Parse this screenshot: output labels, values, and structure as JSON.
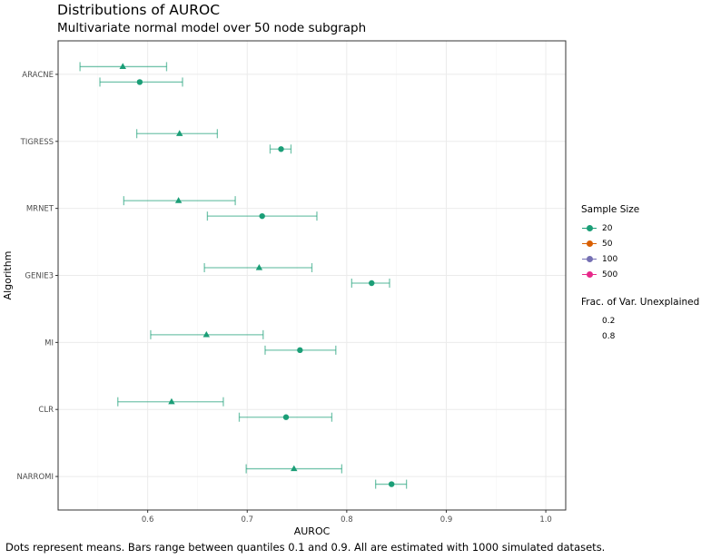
{
  "title": "Distributions of AUROC",
  "subtitle": "Multivariate normal model over 50 node subgraph",
  "caption": "Dots represent means. Bars range between quantiles 0.1 and 0.9. All are estimated with 1000 simulated datasets.",
  "legend": {
    "sample_size_title": "Sample Size",
    "sample_sizes": [
      {
        "label": "20",
        "color": "#1b9e77"
      },
      {
        "label": "50",
        "color": "#d95f02"
      },
      {
        "label": "100",
        "color": "#7570b3"
      },
      {
        "label": "500",
        "color": "#e7298a"
      }
    ],
    "frac_title": "Frac. of Var. Unexplained",
    "fracs": [
      {
        "label": "0.2",
        "shape": "circle"
      },
      {
        "label": "0.8",
        "shape": "triangle"
      }
    ]
  },
  "chart_data": {
    "type": "scatter",
    "title": "Distributions of AUROC",
    "subtitle": "Multivariate normal model over 50 node subgraph",
    "xlabel": "AUROC",
    "ylabel": "Algorithm",
    "xlim": [
      0.51,
      1.02
    ],
    "xticks": [
      0.6,
      0.7,
      0.8,
      0.9,
      1.0
    ],
    "xtick_labels": [
      "0.6",
      "0.7",
      "0.8",
      "0.9",
      "1.0"
    ],
    "categories": [
      "ARACNE",
      "TIGRESS",
      "MRNET",
      "GENIE3",
      "MI",
      "CLR",
      "NARROMI"
    ],
    "grid": true,
    "legend_position": "right",
    "series": [
      {
        "sample_size": "20",
        "frac_var_unexplained": "0.8",
        "shape": "triangle",
        "color": "#1b9e77",
        "mean": [
          0.575,
          0.632,
          0.631,
          0.712,
          0.659,
          0.624,
          0.747
        ],
        "q10": [
          0.532,
          0.589,
          0.576,
          0.657,
          0.603,
          0.57,
          0.699
        ],
        "q90": [
          0.619,
          0.67,
          0.688,
          0.765,
          0.716,
          0.676,
          0.795
        ]
      },
      {
        "sample_size": "20",
        "frac_var_unexplained": "0.2",
        "shape": "circle",
        "color": "#1b9e77",
        "mean": [
          0.592,
          0.734,
          0.715,
          0.825,
          0.753,
          0.739,
          0.845
        ],
        "q10": [
          0.552,
          0.723,
          0.66,
          0.805,
          0.718,
          0.692,
          0.829
        ],
        "q90": [
          0.635,
          0.744,
          0.77,
          0.843,
          0.789,
          0.785,
          0.86
        ]
      }
    ]
  }
}
